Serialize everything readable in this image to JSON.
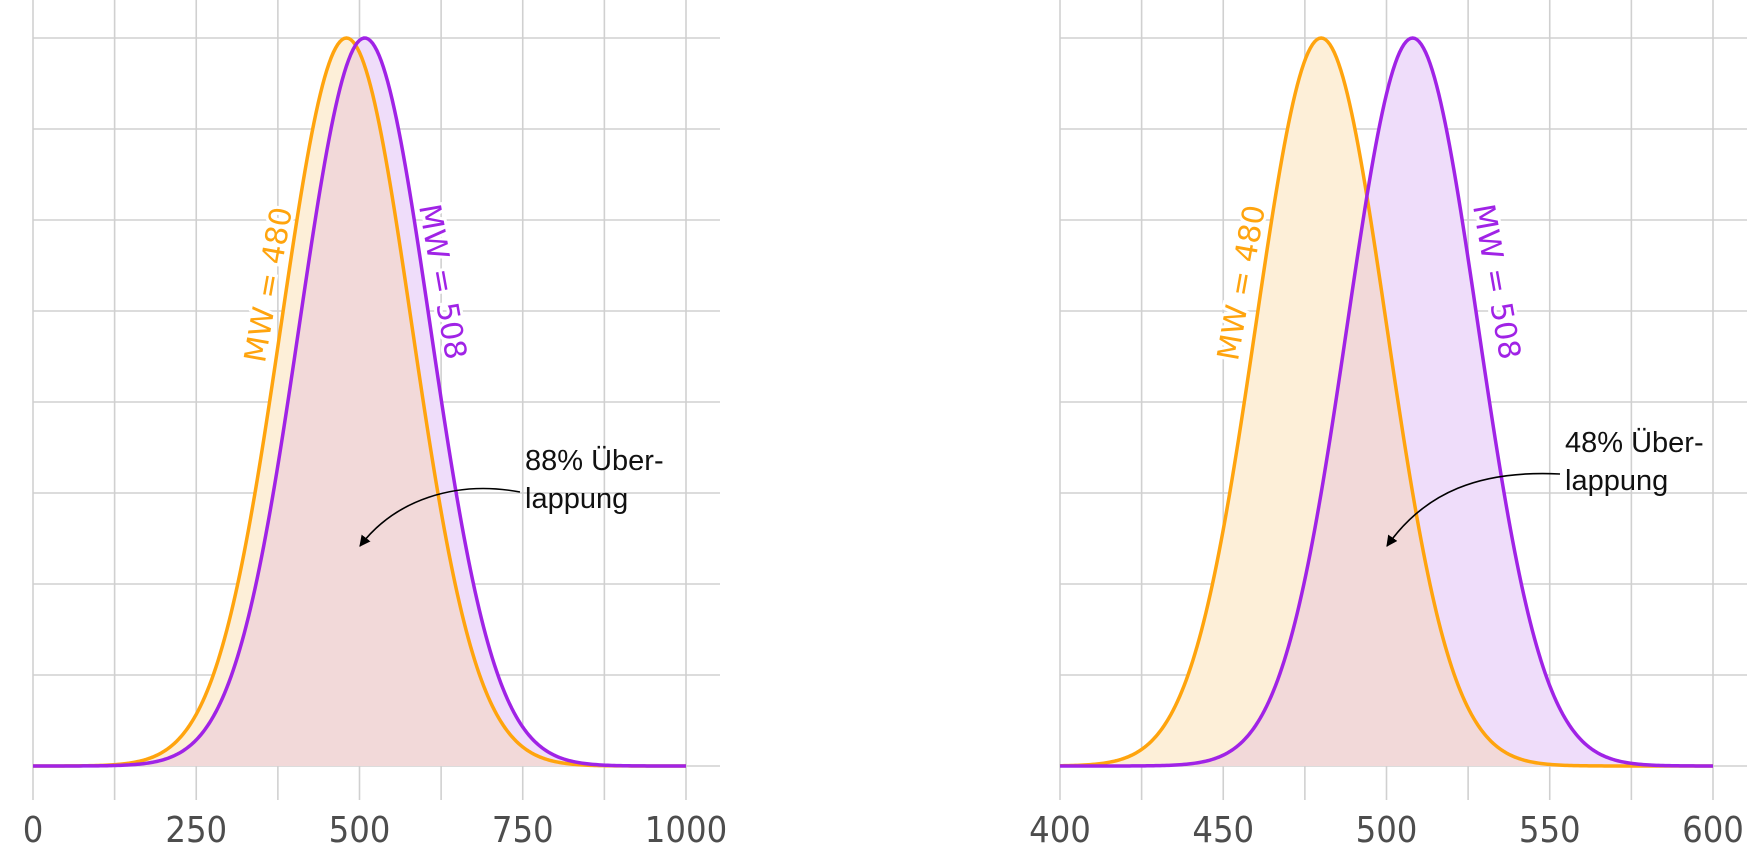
{
  "colors": {
    "group_a": "#ffa40e",
    "group_b": "#a023e6",
    "fill_a": "#fdefd8",
    "fill_b": "#efddfa",
    "fill_overlap": "#f2d9d9",
    "grid": "#d0d0d0"
  },
  "chart_data": [
    {
      "type": "area",
      "xlim": [
        0,
        1000
      ],
      "x_ticks": [
        "0",
        "250",
        "500",
        "750",
        "1000"
      ],
      "grid": true,
      "series": [
        {
          "name": "MW = 480",
          "mean": 480,
          "sd": 100
        },
        {
          "name": "MW = 508",
          "mean": 508,
          "sd": 100
        }
      ],
      "annotation": [
        "88% Über-",
        "lappung"
      ],
      "overlap_percent": 88
    },
    {
      "type": "area",
      "xlim": [
        400,
        600
      ],
      "x_ticks": [
        "400",
        "450",
        "500",
        "550",
        "600"
      ],
      "grid": true,
      "series": [
        {
          "name": "MW = 480",
          "mean": 480,
          "sd": 20
        },
        {
          "name": "MW = 508",
          "mean": 508,
          "sd": 20
        }
      ],
      "annotation": [
        "48% Über-",
        "lappung"
      ],
      "overlap_percent": 48
    }
  ]
}
